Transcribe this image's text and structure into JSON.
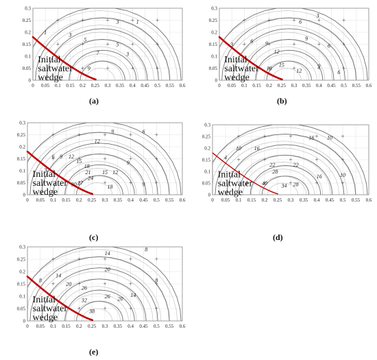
{
  "wedge_label_lines": [
    "Initial",
    "saltwater",
    "wedge"
  ],
  "colors": {
    "wedge": "#c00000",
    "major_contour": "#6e6e6e",
    "minor_contour": "#c4c4c4"
  },
  "x_ticks": [
    "0",
    "0.05",
    "0.1",
    "0.15",
    "0.2",
    "0.25",
    "0.3",
    "0.35",
    "0.4",
    "0.45",
    "0.5",
    "0.55",
    "0.6"
  ],
  "y_ticks": [
    "0",
    "0.05",
    "0.1",
    "0.15",
    "0.2",
    "0.25",
    "0.3"
  ],
  "panels": [
    {
      "id": "a",
      "caption": "(a)",
      "contour_labels": [
        [
          "1",
          0.05,
          0.2
        ],
        [
          "3",
          0.15,
          0.19
        ],
        [
          "5",
          0.21,
          0.17
        ],
        [
          "7",
          0.26,
          0.115
        ],
        [
          "9",
          0.225,
          0.05
        ],
        [
          "3",
          0.34,
          0.245
        ],
        [
          "1",
          0.42,
          0.245
        ],
        [
          "5",
          0.34,
          0.15
        ],
        [
          "3",
          0.38,
          0.11
        ]
      ],
      "crosses": [
        [
          0.1,
          0.25
        ],
        [
          0.2,
          0.25
        ],
        [
          0.3,
          0.25
        ],
        [
          0.4,
          0.25
        ],
        [
          0.5,
          0.25
        ],
        [
          0.1,
          0.15
        ],
        [
          0.2,
          0.15
        ],
        [
          0.3,
          0.15
        ],
        [
          0.4,
          0.15
        ],
        [
          0.5,
          0.15
        ],
        [
          0.2,
          0.05
        ],
        [
          0.3,
          0.05
        ],
        [
          0.4,
          0.05
        ],
        [
          0.5,
          0.05
        ]
      ]
    },
    {
      "id": "b",
      "caption": "(b)",
      "contour_labels": [
        [
          "3",
          0.05,
          0.15
        ],
        [
          "6",
          0.13,
          0.165
        ],
        [
          "9",
          0.19,
          0.155
        ],
        [
          "12",
          0.23,
          0.12
        ],
        [
          "15",
          0.25,
          0.065
        ],
        [
          "18",
          0.2,
          0.05
        ],
        [
          "6",
          0.325,
          0.245
        ],
        [
          "3",
          0.395,
          0.27
        ],
        [
          "9",
          0.35,
          0.175
        ],
        [
          "6",
          0.44,
          0.145
        ],
        [
          "9",
          0.4,
          0.06
        ],
        [
          "12",
          0.32,
          0.04
        ],
        [
          "6",
          0.48,
          0.035
        ]
      ],
      "crosses": [
        [
          0.1,
          0.25
        ],
        [
          0.2,
          0.25
        ],
        [
          0.3,
          0.25
        ],
        [
          0.4,
          0.25
        ],
        [
          0.5,
          0.25
        ],
        [
          0.1,
          0.15
        ],
        [
          0.2,
          0.15
        ],
        [
          0.3,
          0.15
        ],
        [
          0.4,
          0.15
        ],
        [
          0.5,
          0.15
        ],
        [
          0.2,
          0.05
        ],
        [
          0.3,
          0.05
        ],
        [
          0.4,
          0.05
        ],
        [
          0.5,
          0.05
        ]
      ]
    },
    {
      "id": "c",
      "caption": "(c)",
      "contour_labels": [
        [
          "9",
          0.33,
          0.265
        ],
        [
          "6",
          0.45,
          0.265
        ],
        [
          "12",
          0.27,
          0.225
        ],
        [
          "6",
          0.1,
          0.16
        ],
        [
          "9",
          0.13,
          0.16
        ],
        [
          "12",
          0.17,
          0.16
        ],
        [
          "15",
          0.2,
          0.14
        ],
        [
          "18",
          0.23,
          0.12
        ],
        [
          "21",
          0.235,
          0.095
        ],
        [
          "24",
          0.245,
          0.07
        ],
        [
          "27",
          0.205,
          0.05
        ],
        [
          "30",
          0.18,
          0.045
        ],
        [
          "15",
          0.3,
          0.095
        ],
        [
          "12",
          0.34,
          0.095
        ],
        [
          "9",
          0.39,
          0.135
        ],
        [
          "18",
          0.32,
          0.035
        ],
        [
          "9",
          0.45,
          0.045
        ],
        [
          "3",
          0.07,
          0.105
        ]
      ],
      "crosses": [
        [
          0.1,
          0.25
        ],
        [
          0.2,
          0.25
        ],
        [
          0.3,
          0.25
        ],
        [
          0.4,
          0.25
        ],
        [
          0.5,
          0.25
        ],
        [
          0.1,
          0.15
        ],
        [
          0.2,
          0.15
        ],
        [
          0.3,
          0.15
        ],
        [
          0.4,
          0.15
        ],
        [
          0.5,
          0.15
        ],
        [
          0.2,
          0.05
        ],
        [
          0.3,
          0.05
        ],
        [
          0.4,
          0.05
        ],
        [
          0.5,
          0.05
        ]
      ]
    },
    {
      "id": "d",
      "caption": "(d)",
      "contour_labels": [
        [
          "4",
          0.05,
          0.16
        ],
        [
          "10",
          0.1,
          0.2
        ],
        [
          "16",
          0.17,
          0.2
        ],
        [
          "22",
          0.23,
          0.13
        ],
        [
          "28",
          0.24,
          0.1
        ],
        [
          "34",
          0.275,
          0.04
        ],
        [
          "40",
          0.2,
          0.05
        ],
        [
          "28",
          0.32,
          0.045
        ],
        [
          "22",
          0.32,
          0.13
        ],
        [
          "16",
          0.38,
          0.245
        ],
        [
          "10",
          0.45,
          0.245
        ],
        [
          "16",
          0.41,
          0.08
        ],
        [
          "10",
          0.5,
          0.085
        ],
        [
          "4",
          0.13,
          0.05
        ]
      ],
      "crosses": [
        [
          0.1,
          0.25
        ],
        [
          0.2,
          0.25
        ],
        [
          0.3,
          0.25
        ],
        [
          0.4,
          0.25
        ],
        [
          0.5,
          0.25
        ],
        [
          0.1,
          0.15
        ],
        [
          0.2,
          0.15
        ],
        [
          0.3,
          0.15
        ],
        [
          0.4,
          0.15
        ],
        [
          0.5,
          0.15
        ],
        [
          0.2,
          0.05
        ],
        [
          0.3,
          0.05
        ],
        [
          0.4,
          0.05
        ],
        [
          0.5,
          0.05
        ]
      ]
    },
    {
      "id": "e",
      "caption": "(e)",
      "contour_labels": [
        [
          "14",
          0.31,
          0.275
        ],
        [
          "8",
          0.46,
          0.29
        ],
        [
          "8",
          0.05,
          0.165
        ],
        [
          "14",
          0.12,
          0.185
        ],
        [
          "20",
          0.16,
          0.15
        ],
        [
          "26",
          0.22,
          0.135
        ],
        [
          "32",
          0.22,
          0.085
        ],
        [
          "38",
          0.25,
          0.04
        ],
        [
          "20",
          0.31,
          0.21
        ],
        [
          "26",
          0.31,
          0.1
        ],
        [
          "20",
          0.36,
          0.09
        ],
        [
          "14",
          0.41,
          0.105
        ],
        [
          "8",
          0.5,
          0.165
        ]
      ],
      "crosses": [
        [
          0.1,
          0.25
        ],
        [
          0.2,
          0.25
        ],
        [
          0.3,
          0.25
        ],
        [
          0.4,
          0.25
        ],
        [
          0.5,
          0.25
        ],
        [
          0.1,
          0.15
        ],
        [
          0.2,
          0.15
        ],
        [
          0.3,
          0.15
        ],
        [
          0.4,
          0.15
        ],
        [
          0.5,
          0.15
        ],
        [
          0.2,
          0.05
        ],
        [
          0.3,
          0.05
        ],
        [
          0.4,
          0.05
        ],
        [
          0.5,
          0.05
        ]
      ]
    }
  ]
}
